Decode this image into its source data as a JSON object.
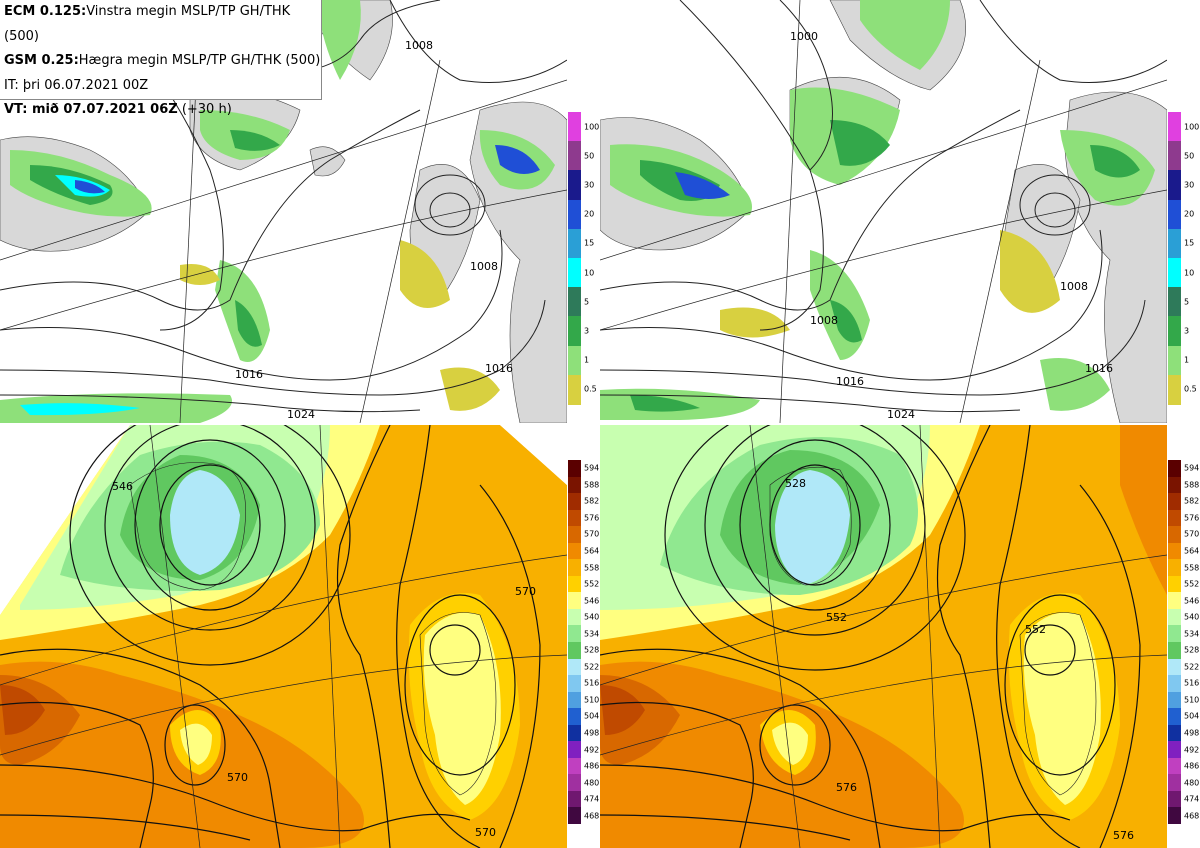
{
  "header": {
    "line1_model": "ECM 0.125:",
    "line1_text": "Vinstra megin MSLP/TP GH/THK (500)",
    "line2_model": "GSM 0.25:",
    "line2_text": "Hægra megin MSLP/TP GH/THK (500)",
    "line3": "IT: þri 06.07.2021 00Z",
    "line4_bold": "VT: mið 07.07.2021 06Z",
    "line4_rest": " (+30 h)"
  },
  "precip_legend": {
    "labels": [
      "100",
      "50",
      "30",
      "20",
      "15",
      "10",
      "5",
      "3",
      "1",
      "0.5"
    ],
    "colors": [
      "#e040e0",
      "#8e3a8e",
      "#1a1a8c",
      "#1f4fd6",
      "#2a9fd6",
      "#00ffff",
      "#2e7a5a",
      "#33a84a",
      "#8ee07a",
      "#d8d040"
    ]
  },
  "thickness_legend": {
    "labels": [
      "594",
      "588",
      "582",
      "576",
      "570",
      "564",
      "558",
      "552",
      "546",
      "540",
      "534",
      "528",
      "522",
      "516",
      "510",
      "504",
      "498",
      "492",
      "486",
      "480",
      "474",
      "468"
    ],
    "colors": [
      "#5a0000",
      "#7a1400",
      "#a02c00",
      "#c04a00",
      "#d86800",
      "#f08a00",
      "#f8b000",
      "#ffd000",
      "#ffff80",
      "#c8ffb0",
      "#90e890",
      "#60c860",
      "#b0e8f8",
      "#80c8f0",
      "#50a0e0",
      "#2060d0",
      "#1030a0",
      "#8020c0",
      "#c040c0",
      "#a030a0",
      "#701870",
      "#400840"
    ]
  },
  "contour_labels": {
    "tl": [
      "1008",
      "1016",
      "1008",
      "1016",
      "1024"
    ],
    "tr": [
      "1000",
      "1008",
      "1016",
      "1008",
      "1016",
      "1024"
    ],
    "bl": [
      "546",
      "570",
      "570",
      "570"
    ],
    "br": [
      "528",
      "552",
      "552",
      "576",
      "576"
    ]
  }
}
